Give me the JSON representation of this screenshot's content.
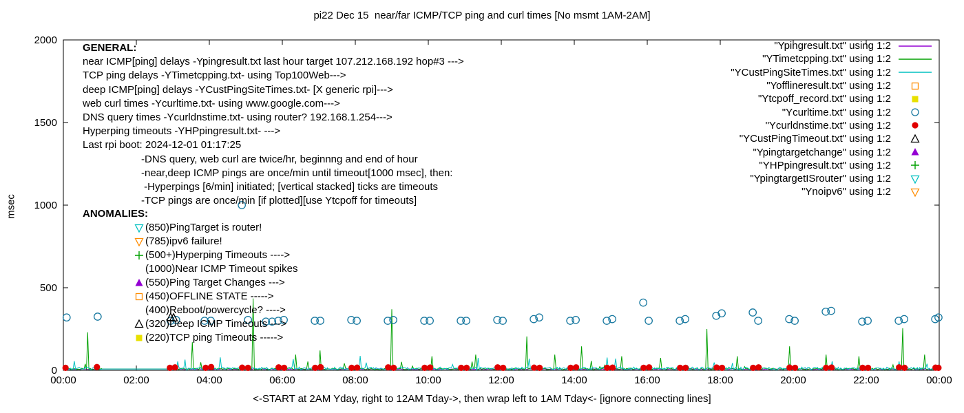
{
  "title": "pi22 Dec 15  near/far ICMP/TCP ping and curl times [No msmt 1AM-2AM]",
  "ylabel": "msec",
  "xlabel": "<-START at 2AM Yday, right to 12AM Tday->, then wrap left to 1AM Tday<- [ignore connecting lines]",
  "general": {
    "heading": "GENERAL:",
    "lines": [
      "near ICMP[ping] delays -Ypingresult.txt last hour target 107.212.168.192 hop#3 --->",
      "TCP ping delays -YTimetcpping.txt- using Top100Web--->",
      "deep ICMP[ping] delays -YCustPingSiteTimes.txt- [X generic rpi]--->",
      "web curl times -Ycurltime.txt- using www.google.com--->",
      "DNS query times -Ycurldnstime.txt- using router? 192.168.1.254--->",
      "Hyperping timeouts -YHPpingresult.txt- --->",
      "Last rpi boot: 2024-12-01 01:17:25"
    ],
    "indented_lines": [
      "-DNS query, web curl are twice/hr, beginnng and end of hour",
      "-near,deep ICMP pings are once/min until timeout[1000 msec], then:",
      " -Hyperpings [6/min] initiated; [vertical stacked] ticks are timeouts",
      "-TCP pings are once/min [if plotted][use Ytcpoff for timeouts]"
    ]
  },
  "anomalies": {
    "heading": "ANOMALIES:",
    "items": [
      {
        "marker": "tri-down-open",
        "color": "#00c0c0",
        "text": "(850)PingTarget is router!"
      },
      {
        "marker": "tri-down-open",
        "color": "#ff8c00",
        "text": "(785)ipv6 failure!"
      },
      {
        "marker": "plus",
        "color": "#00a000",
        "text": "(500+)Hyperping Timeouts ---->"
      },
      {
        "marker": "none",
        "color": "#000000",
        "text": "(1000)Near ICMP Timeout spikes"
      },
      {
        "marker": "tri-up-filled",
        "color": "#9400d3",
        "text": "(550)Ping Target Changes --->"
      },
      {
        "marker": "square-open",
        "color": "#ff8c00",
        "text": "(450)OFFLINE STATE ----->"
      },
      {
        "marker": "none",
        "color": "#000000",
        "text": "(400)Reboot/powercycle? ---->"
      },
      {
        "marker": "tri-up-open",
        "color": "#000000",
        "text": "(320)Deep ICMP Timeouts --->"
      },
      {
        "marker": "square-filled",
        "color": "#e8e000",
        "text": "(220)TCP ping Timeouts ----->"
      }
    ]
  },
  "legend": {
    "items": [
      {
        "label": "\"Ypingresult.txt\" using 1:2",
        "sample": "line",
        "color": "#9400d3"
      },
      {
        "label": "\"YTimetcpping.txt\" using 1:2",
        "sample": "line",
        "color": "#00a000"
      },
      {
        "label": "\"YCustPingSiteTimes.txt\" using 1:2",
        "sample": "line",
        "color": "#00c0c0"
      },
      {
        "label": "\"Yofflineresult.txt\" using 1:2",
        "sample": "square-open",
        "color": "#ff8c00"
      },
      {
        "label": "\"Ytcpoff_record.txt\" using 1:2",
        "sample": "square-filled",
        "color": "#e8e000"
      },
      {
        "label": "\"Ycurltime.txt\" using 1:2",
        "sample": "circle-open",
        "color": "#1778a0"
      },
      {
        "label": "\"Ycurldnstime.txt\" using 1:2",
        "sample": "circle-filled",
        "color": "#e00000"
      },
      {
        "label": "\"YCustPingTimeout.txt\" using 1:2",
        "sample": "tri-up-open",
        "color": "#000000"
      },
      {
        "label": "\"Ypingtargetchange\" using 1:2",
        "sample": "tri-up-filled",
        "color": "#9400d3"
      },
      {
        "label": "\"YHPpingresult.txt\" using 1:2",
        "sample": "plus",
        "color": "#00a000"
      },
      {
        "label": "\"YpingtargetISrouter\" using 1:2",
        "sample": "tri-down-open",
        "color": "#00c0c0"
      },
      {
        "label": "\"Ynoipv6\" using 1:2",
        "sample": "tri-down-open",
        "color": "#ff8c00"
      }
    ]
  },
  "chart_data": {
    "type": "mixed",
    "title": "pi22 Dec 15  near/far ICMP/TCP ping and curl times [No msmt 1AM-2AM]",
    "xlabel": "<-START at 2AM Yday, right to 12AM Tday->, then wrap left to 1AM Tday<- [ignore connecting lines]",
    "ylabel": "msec",
    "x_axis": {
      "range_hours": [
        0,
        24
      ],
      "ticks": [
        "00:00",
        "02:00",
        "04:00",
        "06:00",
        "08:00",
        "10:00",
        "12:00",
        "14:00",
        "16:00",
        "18:00",
        "20:00",
        "22:00",
        "00:00"
      ]
    },
    "y_axis": {
      "range": [
        0,
        2000
      ],
      "ticks": [
        0,
        500,
        1000,
        1500,
        2000
      ]
    },
    "grid": false,
    "legend_position": "top-right",
    "flat_line_segment": {
      "from_hour": 1.05,
      "to_hour": 2.85,
      "msec": 8
    },
    "series": [
      {
        "name": "Ypingresult.txt",
        "type": "line",
        "color": "#9400d3",
        "baseline_msec": 4,
        "jitter_msec": 5,
        "burst_chance": 0.0,
        "burst_max_msec": 0,
        "seed": 7,
        "spikes_hour_msec": []
      },
      {
        "name": "YTimetcpping.txt",
        "type": "line",
        "color": "#00a000",
        "baseline_msec": 3,
        "jitter_msec": 10,
        "burst_chance": 0.03,
        "burst_max_msec": 55,
        "seed": 13,
        "spikes_hour_msec": [
          [
            0.67,
            230
          ],
          [
            3.52,
            170
          ],
          [
            5.2,
            435
          ],
          [
            6.35,
            95
          ],
          [
            7.02,
            120
          ],
          [
            9.0,
            370
          ],
          [
            10.1,
            85
          ],
          [
            11.3,
            95
          ],
          [
            12.7,
            205
          ],
          [
            13.45,
            95
          ],
          [
            14.2,
            145
          ],
          [
            15.3,
            85
          ],
          [
            16.35,
            75
          ],
          [
            17.62,
            250
          ],
          [
            18.45,
            85
          ],
          [
            19.9,
            145
          ],
          [
            20.9,
            95
          ],
          [
            21.8,
            85
          ],
          [
            23.0,
            255
          ],
          [
            23.6,
            95
          ]
        ]
      },
      {
        "name": "YCustPingSiteTimes.txt",
        "type": "line",
        "color": "#00c0c0",
        "baseline_msec": 2,
        "jitter_msec": 18,
        "burst_chance": 0.06,
        "burst_max_msec": 80,
        "seed": 21,
        "spikes_hour_msec": []
      },
      {
        "name": "Ycurltime.txt",
        "type": "points",
        "marker": "circle-open",
        "color": "#1778a0",
        "points_hour_msec": [
          [
            0.09,
            320
          ],
          [
            0.94,
            325
          ],
          [
            2.94,
            300
          ],
          [
            3.09,
            305
          ],
          [
            3.87,
            300
          ],
          [
            4.04,
            300
          ],
          [
            4.89,
            1000
          ],
          [
            5.06,
            305
          ],
          [
            5.55,
            295
          ],
          [
            5.72,
            295
          ],
          [
            5.89,
            300
          ],
          [
            6.04,
            305
          ],
          [
            6.89,
            300
          ],
          [
            7.04,
            300
          ],
          [
            7.89,
            305
          ],
          [
            8.04,
            300
          ],
          [
            8.89,
            300
          ],
          [
            9.04,
            305
          ],
          [
            9.89,
            300
          ],
          [
            10.04,
            300
          ],
          [
            10.89,
            300
          ],
          [
            11.04,
            300
          ],
          [
            11.89,
            305
          ],
          [
            12.04,
            300
          ],
          [
            12.89,
            310
          ],
          [
            13.04,
            320
          ],
          [
            13.89,
            300
          ],
          [
            14.04,
            305
          ],
          [
            14.89,
            300
          ],
          [
            15.04,
            310
          ],
          [
            15.89,
            410
          ],
          [
            16.04,
            300
          ],
          [
            16.89,
            300
          ],
          [
            17.04,
            310
          ],
          [
            17.89,
            330
          ],
          [
            18.04,
            345
          ],
          [
            18.89,
            350
          ],
          [
            19.04,
            300
          ],
          [
            19.89,
            310
          ],
          [
            20.04,
            300
          ],
          [
            20.89,
            355
          ],
          [
            21.04,
            360
          ],
          [
            21.89,
            295
          ],
          [
            22.04,
            300
          ],
          [
            22.89,
            300
          ],
          [
            23.04,
            310
          ],
          [
            23.89,
            310
          ],
          [
            23.98,
            320
          ]
        ]
      },
      {
        "name": "Ycurldnstime.txt",
        "type": "points",
        "marker": "circle-filled",
        "color": "#e00000",
        "points_hour_msec": [
          [
            0.06,
            15
          ],
          [
            0.92,
            20
          ],
          [
            2.92,
            15
          ],
          [
            3.06,
            18
          ],
          [
            3.9,
            15
          ],
          [
            4.05,
            20
          ],
          [
            4.9,
            16
          ],
          [
            5.06,
            15
          ],
          [
            5.9,
            18
          ],
          [
            6.05,
            15
          ],
          [
            6.9,
            15
          ],
          [
            7.05,
            19
          ],
          [
            7.9,
            15
          ],
          [
            8.05,
            16
          ],
          [
            8.9,
            18
          ],
          [
            9.05,
            15
          ],
          [
            9.9,
            15
          ],
          [
            10.05,
            17
          ],
          [
            10.9,
            15
          ],
          [
            11.05,
            15
          ],
          [
            11.9,
            18
          ],
          [
            12.05,
            15
          ],
          [
            12.9,
            16
          ],
          [
            13.05,
            15
          ],
          [
            13.9,
            15
          ],
          [
            14.05,
            18
          ],
          [
            14.9,
            15
          ],
          [
            15.05,
            16
          ],
          [
            15.9,
            15
          ],
          [
            16.05,
            18
          ],
          [
            16.9,
            15
          ],
          [
            17.05,
            15
          ],
          [
            17.9,
            17
          ],
          [
            18.05,
            15
          ],
          [
            18.9,
            15
          ],
          [
            19.05,
            18
          ],
          [
            19.9,
            16
          ],
          [
            20.05,
            15
          ],
          [
            20.9,
            15
          ],
          [
            21.05,
            17
          ],
          [
            21.9,
            15
          ],
          [
            22.05,
            15
          ],
          [
            22.9,
            18
          ],
          [
            23.05,
            15
          ],
          [
            23.9,
            16
          ],
          [
            23.98,
            15
          ]
        ]
      },
      {
        "name": "YCustPingTimeout.txt",
        "type": "points",
        "marker": "tri-up-open",
        "color": "#000000",
        "points_hour_msec": [
          [
            2.94,
            320
          ],
          [
            3.02,
            318
          ]
        ]
      }
    ]
  }
}
